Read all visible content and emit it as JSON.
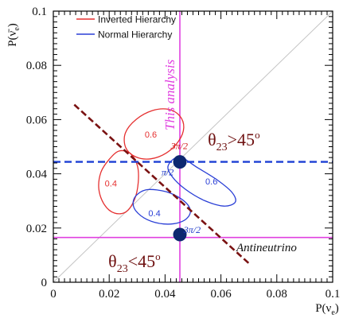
{
  "chart_data": {
    "type": "scatter",
    "xlabel": "P(ν_e)",
    "ylabel": "P(ν̄_e)",
    "xlim": [
      0,
      0.1
    ],
    "ylim": [
      0,
      0.1
    ],
    "x_ticks": [
      "0",
      "0.02",
      "0.04",
      "0.06",
      "0.08",
      "0.1"
    ],
    "y_ticks": [
      "0",
      "0.02",
      "0.04",
      "0.06",
      "0.08",
      "0.1"
    ],
    "grid": false,
    "legend_position": "top-left",
    "legend": [
      {
        "label": "Inverted Hierarchy",
        "color": "#e53030"
      },
      {
        "label": "Normal Hierarchy",
        "color": "#2a3fd6"
      }
    ],
    "diagonal": {
      "from": [
        0,
        0
      ],
      "to": [
        0.1,
        0.1
      ],
      "color": "#c4c4c4"
    },
    "analysis_lines": {
      "vertical_x": 0.0453,
      "horizontal_y": 0.0165,
      "color": "#e040e0",
      "vertical_label": "This analysis"
    },
    "theta_upper_line": {
      "y": 0.0444,
      "color": "#1c3fd4"
    },
    "antineutrino_line": {
      "from": [
        0.0075,
        0.0655
      ],
      "to": [
        0.0705,
        0.0065
      ],
      "color": "#7a1212",
      "label": "Antineutrino"
    },
    "ellipses": [
      {
        "hierarchy": "Inverted",
        "color": "#e53030",
        "points": [
          [
            0.0297,
            0.0601
          ],
          [
            0.0354,
            0.0633
          ],
          [
            0.0411,
            0.0638
          ],
          [
            0.0452,
            0.0614
          ],
          [
            0.0467,
            0.0571
          ],
          [
            0.0449,
            0.0521
          ],
          [
            0.0405,
            0.0477
          ],
          [
            0.0348,
            0.0455
          ],
          [
            0.0294,
            0.0463
          ],
          [
            0.0259,
            0.0497
          ],
          [
            0.0258,
            0.0551
          ]
        ],
        "label": "0.6",
        "label_at": [
          0.0349,
          0.0545
        ]
      },
      {
        "hierarchy": "Inverted",
        "color": "#e53030",
        "points": [
          [
            0.0199,
            0.0452
          ],
          [
            0.0235,
            0.0484
          ],
          [
            0.0276,
            0.0475
          ],
          [
            0.0301,
            0.0429
          ],
          [
            0.0304,
            0.0368
          ],
          [
            0.0291,
            0.0306
          ],
          [
            0.0261,
            0.026
          ],
          [
            0.0219,
            0.0255
          ],
          [
            0.0183,
            0.0286
          ],
          [
            0.0163,
            0.0343
          ],
          [
            0.017,
            0.0405
          ]
        ],
        "label": "0.4",
        "label_at": [
          0.0206,
          0.0365
        ]
      },
      {
        "hierarchy": "Normal",
        "color": "#2a3fd6",
        "points": [
          [
            0.0451,
            0.0462
          ],
          [
            0.0517,
            0.0422
          ],
          [
            0.0587,
            0.0377
          ],
          [
            0.064,
            0.0331
          ],
          [
            0.0651,
            0.0295
          ],
          [
            0.061,
            0.0281
          ],
          [
            0.0542,
            0.0301
          ],
          [
            0.0474,
            0.0342
          ],
          [
            0.0426,
            0.0389
          ],
          [
            0.0411,
            0.043
          ]
        ],
        "label": "0.6",
        "label_at": [
          0.0566,
          0.0372
        ]
      },
      {
        "hierarchy": "Normal",
        "color": "#2a3fd6",
        "points": [
          [
            0.034,
            0.0342
          ],
          [
            0.0404,
            0.0334
          ],
          [
            0.046,
            0.0306
          ],
          [
            0.0489,
            0.0272
          ],
          [
            0.0483,
            0.0241
          ],
          [
            0.045,
            0.022
          ],
          [
            0.0395,
            0.0215
          ],
          [
            0.0336,
            0.0231
          ],
          [
            0.0295,
            0.0264
          ],
          [
            0.0286,
            0.0298
          ],
          [
            0.0304,
            0.0327
          ]
        ],
        "label": "0.4",
        "label_at": [
          0.0362,
          0.0255
        ]
      }
    ],
    "markers": [
      {
        "x": 0.0453,
        "y": 0.0444,
        "color": "#0c2870"
      },
      {
        "x": 0.0453,
        "y": 0.0176,
        "color": "#0c2870"
      }
    ],
    "point_labels": [
      {
        "text": "3π/2",
        "x": 0.0451,
        "y": 0.0491,
        "color": "#d01818"
      },
      {
        "text": "π/2",
        "x": 0.0409,
        "y": 0.0395,
        "color": "#1a36c8"
      },
      {
        "text": "3π/2",
        "x": 0.0497,
        "y": 0.0182,
        "color": "#1a36c8"
      }
    ],
    "annotations": {
      "theta_upper": {
        "base": "θ",
        "sub": "23",
        "rest": ">45",
        "sup": "o",
        "x": 0.0553,
        "y": 0.0505
      },
      "theta_lower": {
        "base": "θ",
        "sub": "23",
        "rest": "<45",
        "sup": "o",
        "x": 0.0197,
        "y": 0.0056
      }
    }
  }
}
